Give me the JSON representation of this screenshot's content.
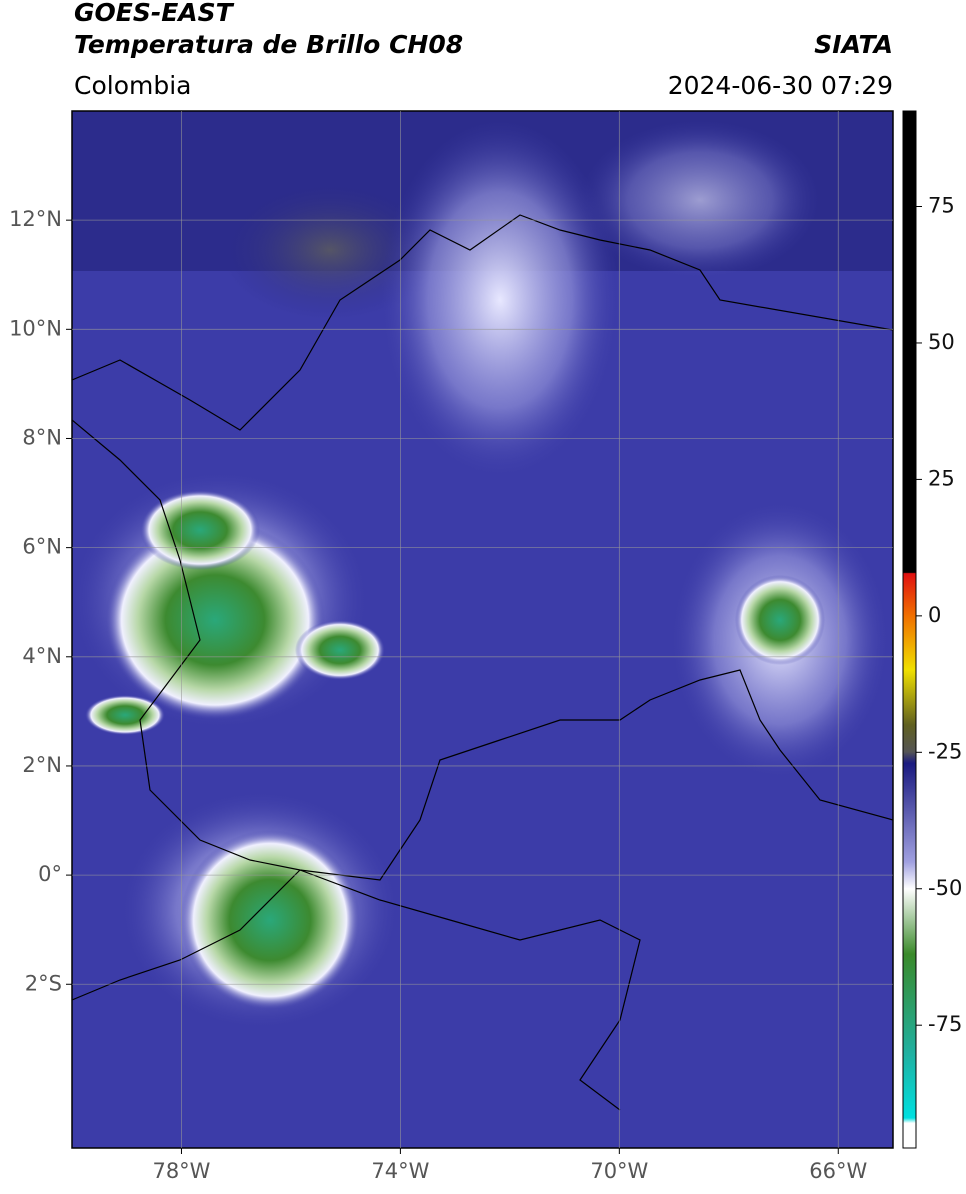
{
  "header": {
    "title": "GOES-EAST",
    "subtitle": "Temperatura de Brillo CH08",
    "source": "SIATA",
    "region": "Colombia",
    "datetime": "2024-06-30 07:29"
  },
  "map": {
    "xlim": [
      -80,
      -65
    ],
    "ylim": [
      -5,
      14
    ],
    "xticks": [
      {
        "value": -78,
        "label": "78°W"
      },
      {
        "value": -74,
        "label": "74°W"
      },
      {
        "value": -70,
        "label": "70°W"
      },
      {
        "value": -66,
        "label": "66°W"
      }
    ],
    "yticks": [
      {
        "value": 12,
        "label": "12°N"
      },
      {
        "value": 10,
        "label": "10°N"
      },
      {
        "value": 8,
        "label": "8°N"
      },
      {
        "value": 6,
        "label": "6°N"
      },
      {
        "value": 4,
        "label": "4°N"
      },
      {
        "value": 2,
        "label": "2°N"
      },
      {
        "value": 0,
        "label": "0°"
      },
      {
        "value": -2,
        "label": "2°S"
      }
    ],
    "grid": true
  },
  "colorbar": {
    "lim": [
      -97.5,
      92.5
    ],
    "ticks": [
      75,
      50,
      25,
      0,
      -25,
      -50,
      -75
    ]
  }
}
